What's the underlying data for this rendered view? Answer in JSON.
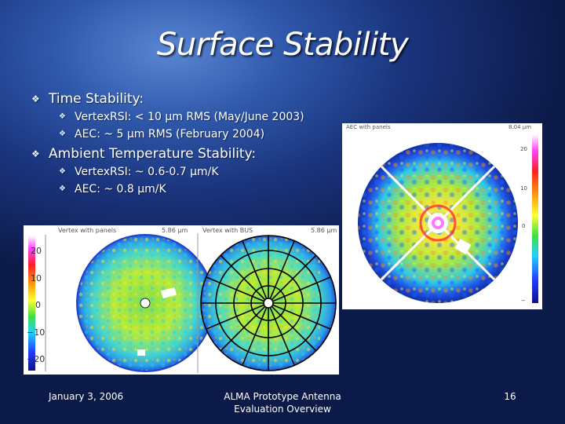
{
  "slide": {
    "title": "Surface Stability",
    "bullets": [
      {
        "text": "Time Stability:",
        "sub": [
          "VertexRSI: < 10 μm RMS (May/June 2003)",
          "AEC: ~ 5 μm RMS (February 2004)"
        ]
      },
      {
        "text": "Ambient Temperature Stability:",
        "sub": [
          "VertexRSI: ~ 0.6-0.7 μm/K",
          "AEC: ~ 0.8 μm/K"
        ]
      }
    ],
    "footer": {
      "date": "January 3, 2006",
      "center_line1": "ALMA Prototype Antenna",
      "center_line2": "Evaluation Overview",
      "page": "16"
    }
  },
  "figures": {
    "left": {
      "header": "Vertex with panels",
      "value": "5.86 μm",
      "scale_ticks": [
        "20",
        "10",
        "0",
        "−10",
        "−20"
      ]
    },
    "middle": {
      "header": "Vertex with BUS",
      "value": "5.86 μm"
    },
    "right": {
      "header": "AEC with panels",
      "value": "8.04 μm",
      "scale_ticks": [
        "20",
        "10",
        "0",
        "−"
      ]
    }
  },
  "colors": {
    "background_dark": "#0c1a49",
    "background_light": "#5a86d2",
    "text": "#ffffff"
  }
}
